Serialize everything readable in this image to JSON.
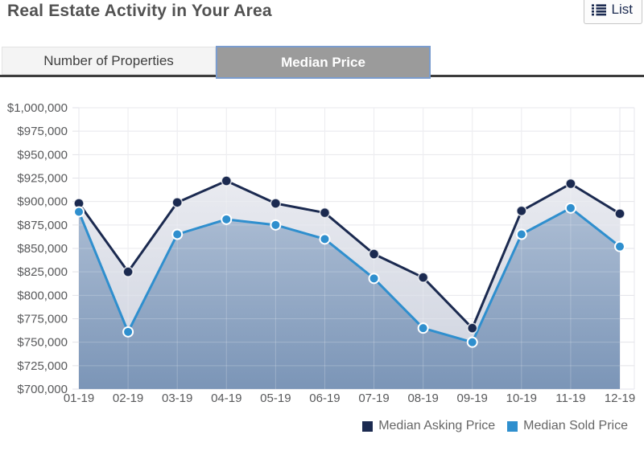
{
  "header": {
    "title": "Real Estate Activity in Your Area",
    "list_button_label": "List"
  },
  "tabs": [
    {
      "label": "Number of Properties",
      "selected": false
    },
    {
      "label": "Median Price",
      "selected": true
    }
  ],
  "chart_data": {
    "type": "line",
    "x": [
      "01-19",
      "02-19",
      "03-19",
      "04-19",
      "05-19",
      "06-19",
      "07-19",
      "08-19",
      "09-19",
      "10-19",
      "11-19",
      "12-19"
    ],
    "series": [
      {
        "name": "Median Asking Price",
        "color": "#1b2a50",
        "area_fill_top": "#f5f5f8",
        "area_fill_bottom": "#cdd2de",
        "values": [
          898000,
          825000,
          899000,
          922000,
          898000,
          888000,
          844000,
          819000,
          765000,
          890000,
          919000,
          887000
        ]
      },
      {
        "name": "Median Sold Price",
        "color": "#2f8fce",
        "area_fill_top": "#c3d0e1",
        "area_fill_bottom": "#7b95b7",
        "values": [
          889000,
          761000,
          865000,
          881000,
          875000,
          860000,
          818000,
          765000,
          750000,
          865000,
          893000,
          852000
        ]
      }
    ],
    "ylim": [
      700000,
      1000000
    ],
    "ytick_step": 25000,
    "ytick_prefix": "$",
    "grid": true,
    "legend_position": "bottom-right"
  },
  "colors": {
    "accent_navy": "#1b2a50",
    "accent_blue": "#2f8fce",
    "tab_active_bg": "#9b9b9b",
    "tab_active_border": "#7a9cce",
    "tab_underline": "#3c3c3c",
    "axis_text": "#58595b",
    "gridline": "#e2e2e8"
  }
}
